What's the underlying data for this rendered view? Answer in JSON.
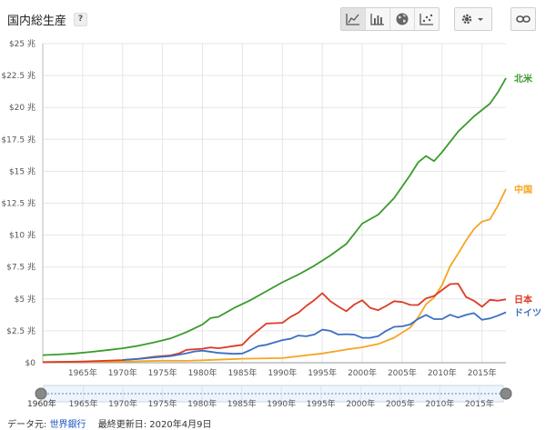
{
  "title": "国内総生産",
  "help_label": "?",
  "toolbar": {
    "chart_views": [
      "line-chart-icon",
      "bar-chart-icon",
      "globe-icon",
      "scatter-icon"
    ],
    "active_view": "line-chart-icon",
    "settings_icon": "gear-icon",
    "dropdown_icon": "chevron-down-icon",
    "link_icon": "link-icon"
  },
  "footer": {
    "source_prefix": "データ元: ",
    "source_link": "世界銀行",
    "updated": "最終更新日: 2020年4月9日"
  },
  "colors": {
    "北米": "#3a9a2c",
    "中国": "#f5a623",
    "日本": "#dd3b27",
    "ドイツ": "#3a6fc4"
  },
  "slider": {
    "start_label": "1960年",
    "ticks": [
      "1965年",
      "1970年",
      "1975年",
      "1980年",
      "1985年",
      "1990年",
      "1995年",
      "2000年",
      "2005年",
      "2010年",
      "2015年"
    ]
  },
  "chart_data": {
    "type": "line",
    "title": "国内総生産",
    "y_ticks": [
      "$0",
      "$2.5 兆",
      "$5 兆",
      "$7.5 兆",
      "$10 兆",
      "$12.5 兆",
      "$15 兆",
      "$17.5 兆",
      "$20 兆",
      "$22.5 兆",
      "$25 兆"
    ],
    "ylim": [
      0,
      25
    ],
    "xlim": [
      1960,
      2018
    ],
    "x_ticks": [
      "1965年",
      "1970年",
      "1975年",
      "1980年",
      "1985年",
      "1990年",
      "1995年",
      "2000年",
      "2005年",
      "2010年",
      "2015年"
    ],
    "x_tick_values": [
      1965,
      1970,
      1975,
      1980,
      1985,
      1990,
      1995,
      2000,
      2005,
      2010,
      2015
    ],
    "grid": true,
    "legend": "right, inline labels",
    "series": [
      {
        "name": "北米",
        "x": [
          1960,
          1962,
          1964,
          1966,
          1968,
          1970,
          1972,
          1974,
          1976,
          1978,
          1980,
          1981,
          1982,
          1984,
          1986,
          1988,
          1990,
          1992,
          1994,
          1996,
          1998,
          2000,
          2002,
          2004,
          2006,
          2007,
          2008,
          2009,
          2010,
          2012,
          2014,
          2016,
          2017,
          2018
        ],
        "values": [
          0.6,
          0.65,
          0.73,
          0.85,
          0.98,
          1.13,
          1.33,
          1.6,
          1.9,
          2.4,
          3.0,
          3.5,
          3.6,
          4.3,
          4.9,
          5.6,
          6.3,
          6.9,
          7.6,
          8.4,
          9.3,
          10.9,
          11.6,
          12.9,
          14.7,
          15.7,
          16.2,
          15.8,
          16.5,
          18.1,
          19.3,
          20.3,
          21.2,
          22.3
        ]
      },
      {
        "name": "中国",
        "x": [
          1960,
          1965,
          1970,
          1975,
          1978,
          1980,
          1985,
          1990,
          1995,
          1998,
          2000,
          2002,
          2004,
          2006,
          2007,
          2008,
          2009,
          2010,
          2011,
          2012,
          2013,
          2014,
          2015,
          2016,
          2017,
          2018
        ],
        "values": [
          0.06,
          0.07,
          0.09,
          0.16,
          0.15,
          0.19,
          0.31,
          0.36,
          0.73,
          1.03,
          1.21,
          1.47,
          1.96,
          2.75,
          3.55,
          4.59,
          5.1,
          6.09,
          7.55,
          8.53,
          9.57,
          10.48,
          11.06,
          11.23,
          12.31,
          13.61
        ]
      },
      {
        "name": "日本",
        "x": [
          1960,
          1965,
          1970,
          1972,
          1974,
          1976,
          1977,
          1978,
          1980,
          1981,
          1982,
          1985,
          1986,
          1988,
          1990,
          1991,
          1992,
          1993,
          1994,
          1995,
          1996,
          1997,
          1998,
          1999,
          2000,
          2001,
          2002,
          2003,
          2004,
          2005,
          2006,
          2007,
          2008,
          2009,
          2010,
          2011,
          2012,
          2013,
          2014,
          2015,
          2016,
          2017,
          2018
        ],
        "values": [
          0.04,
          0.09,
          0.21,
          0.31,
          0.47,
          0.58,
          0.72,
          1.01,
          1.1,
          1.2,
          1.13,
          1.4,
          2.05,
          3.07,
          3.13,
          3.58,
          3.91,
          4.45,
          4.91,
          5.45,
          4.83,
          4.41,
          4.03,
          4.56,
          4.89,
          4.3,
          4.12,
          4.45,
          4.82,
          4.76,
          4.53,
          4.52,
          5.04,
          5.23,
          5.7,
          6.16,
          6.2,
          5.16,
          4.85,
          4.39,
          4.93,
          4.86,
          4.97
        ]
      },
      {
        "name": "ドイツ",
        "x": [
          1970,
          1972,
          1974,
          1976,
          1978,
          1979,
          1980,
          1982,
          1984,
          1985,
          1986,
          1987,
          1988,
          1990,
          1991,
          1992,
          1993,
          1994,
          1995,
          1996,
          1997,
          1998,
          1999,
          2000,
          2001,
          2002,
          2003,
          2004,
          2005,
          2006,
          2007,
          2008,
          2009,
          2010,
          2011,
          2012,
          2013,
          2014,
          2015,
          2016,
          2017,
          2018
        ],
        "values": [
          0.22,
          0.3,
          0.42,
          0.52,
          0.74,
          0.88,
          0.95,
          0.77,
          0.7,
          0.73,
          1.0,
          1.3,
          1.4,
          1.77,
          1.87,
          2.13,
          2.07,
          2.21,
          2.59,
          2.5,
          2.21,
          2.24,
          2.2,
          1.95,
          1.95,
          2.08,
          2.5,
          2.81,
          2.85,
          3.0,
          3.43,
          3.75,
          3.42,
          3.42,
          3.76,
          3.54,
          3.75,
          3.89,
          3.36,
          3.47,
          3.69,
          3.95
        ]
      }
    ]
  }
}
